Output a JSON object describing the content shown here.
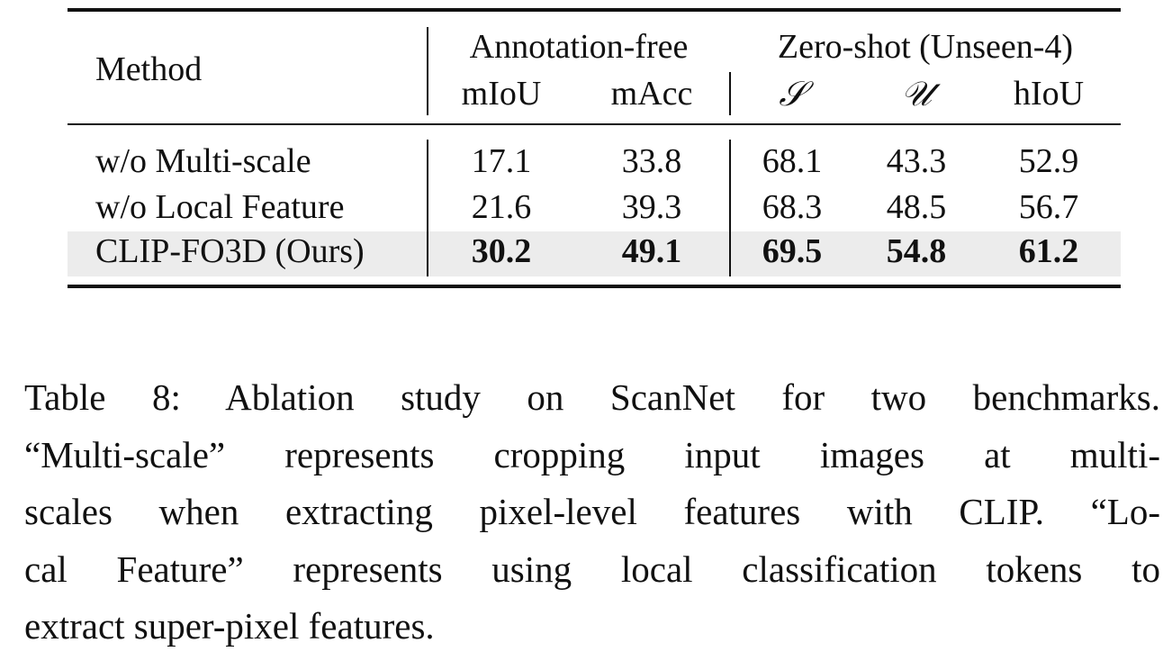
{
  "table": {
    "method_header": "Method",
    "group_annotation_free": "Annotation-free",
    "group_zero_shot": "Zero-shot (Unseen-4)",
    "columns": [
      "mIoU",
      "mAcc",
      "𝒮",
      "𝒰",
      "hIoU"
    ],
    "rows": [
      {
        "method": "w/o Multi-scale",
        "values": [
          "17.1",
          "33.8",
          "68.1",
          "43.3",
          "52.9"
        ]
      },
      {
        "method": "w/o Local Feature",
        "values": [
          "21.6",
          "39.3",
          "68.3",
          "48.5",
          "56.7"
        ]
      },
      {
        "method": "CLIP-FO3D (Ours)",
        "values": [
          "30.2",
          "49.1",
          "69.5",
          "54.8",
          "61.2"
        ],
        "bold": true,
        "highlight_color": "#ececec"
      }
    ]
  },
  "caption": {
    "lines": [
      "Table 8: Ablation study on ScanNet for two benchmarks.",
      "“Multi-scale” represents cropping input images at multi-",
      "scales when extracting pixel-level features with CLIP. “Lo-",
      "cal Feature” represents using local classification tokens to",
      "extract super-pixel features."
    ]
  }
}
